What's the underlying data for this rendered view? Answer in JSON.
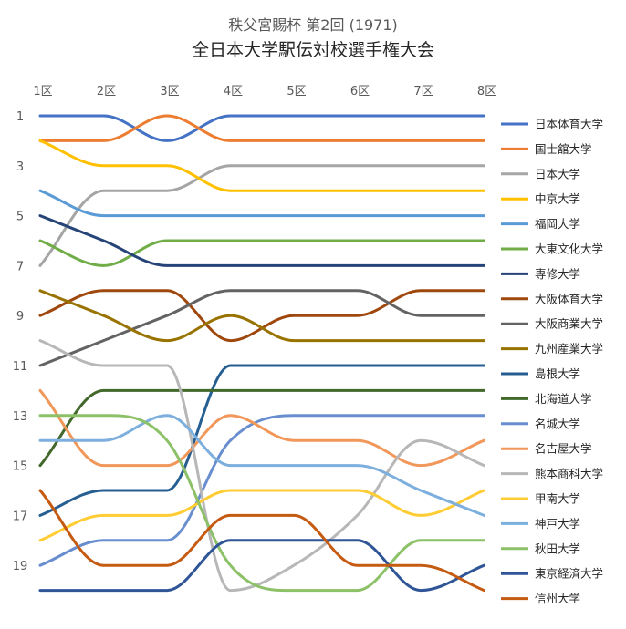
{
  "chart_data": {
    "type": "line",
    "title": "秩父宮賜杯 第2回 (1971)",
    "subtitle": "全日本大学駅伝対校選手権大会",
    "xlabel": "",
    "ylabel": "",
    "categories": [
      "1区",
      "2区",
      "3区",
      "4区",
      "5区",
      "6区",
      "7区",
      "8区"
    ],
    "y_ticks": [
      "1",
      "3",
      "5",
      "7",
      "9",
      "11",
      "13",
      "15",
      "17",
      "19"
    ],
    "ylim": [
      1,
      20
    ],
    "y_reversed": true,
    "x_axis_position": "top",
    "grid": false,
    "legend": "right",
    "series": [
      {
        "name": "日本体育大学",
        "color": "#4472C4",
        "values": [
          1,
          1,
          2,
          1,
          1,
          1,
          1,
          1
        ]
      },
      {
        "name": "国士舘大学",
        "color": "#ED7D31",
        "values": [
          2,
          2,
          1,
          2,
          2,
          2,
          2,
          2
        ]
      },
      {
        "name": "日本大学",
        "color": "#A5A5A5",
        "values": [
          7,
          4,
          4,
          3,
          3,
          3,
          3,
          3
        ]
      },
      {
        "name": "中京大学",
        "color": "#FFC000",
        "values": [
          2,
          3,
          3,
          4,
          4,
          4,
          4,
          4
        ]
      },
      {
        "name": "福岡大学",
        "color": "#5B9BD5",
        "values": [
          4,
          5,
          5,
          5,
          5,
          5,
          5,
          5
        ]
      },
      {
        "name": "大東文化大学",
        "color": "#70AD47",
        "values": [
          6,
          7,
          6,
          6,
          6,
          6,
          6,
          6
        ]
      },
      {
        "name": "専修大学",
        "color": "#264478",
        "values": [
          5,
          6,
          7,
          7,
          7,
          7,
          7,
          7
        ]
      },
      {
        "name": "大阪体育大学",
        "color": "#9E480E",
        "values": [
          9,
          8,
          8,
          10,
          9,
          9,
          8,
          8
        ]
      },
      {
        "name": "大阪商業大学",
        "color": "#636363",
        "values": [
          11,
          10,
          9,
          8,
          8,
          8,
          9,
          9
        ]
      },
      {
        "name": "九州産業大学",
        "color": "#997300",
        "values": [
          8,
          9,
          10,
          9,
          10,
          10,
          10,
          10
        ]
      },
      {
        "name": "島根大学",
        "color": "#255E91",
        "values": [
          17,
          16,
          16,
          11,
          11,
          11,
          11,
          11
        ]
      },
      {
        "name": "北海道大学",
        "color": "#43682B",
        "values": [
          15,
          12,
          12,
          12,
          12,
          12,
          12,
          12
        ]
      },
      {
        "name": "名城大学",
        "color": "#698ED0",
        "values": [
          19,
          18,
          18,
          14,
          13,
          13,
          13,
          13
        ]
      },
      {
        "name": "名古屋大学",
        "color": "#F1975A",
        "values": [
          12,
          15,
          15,
          13,
          14,
          14,
          15,
          14
        ]
      },
      {
        "name": "熊本商科大学",
        "color": "#B7B7B7",
        "values": [
          10,
          11,
          11,
          20,
          19,
          17,
          14,
          15
        ]
      },
      {
        "name": "甲南大学",
        "color": "#FFCD33",
        "values": [
          18,
          17,
          17,
          16,
          16,
          16,
          17,
          16
        ]
      },
      {
        "name": "神戸大学",
        "color": "#7CAFDD",
        "values": [
          14,
          14,
          13,
          15,
          15,
          15,
          16,
          17
        ]
      },
      {
        "name": "秋田大学",
        "color": "#8CC168",
        "values": [
          13,
          13,
          14,
          19,
          20,
          20,
          18,
          18
        ]
      },
      {
        "name": "東京経済大学",
        "color": "#2F5597",
        "values": [
          20,
          20,
          20,
          18,
          18,
          18,
          20,
          19
        ]
      },
      {
        "name": "信州大学",
        "color": "#C55A11",
        "values": [
          16,
          19,
          19,
          17,
          17,
          19,
          19,
          20
        ]
      }
    ]
  }
}
